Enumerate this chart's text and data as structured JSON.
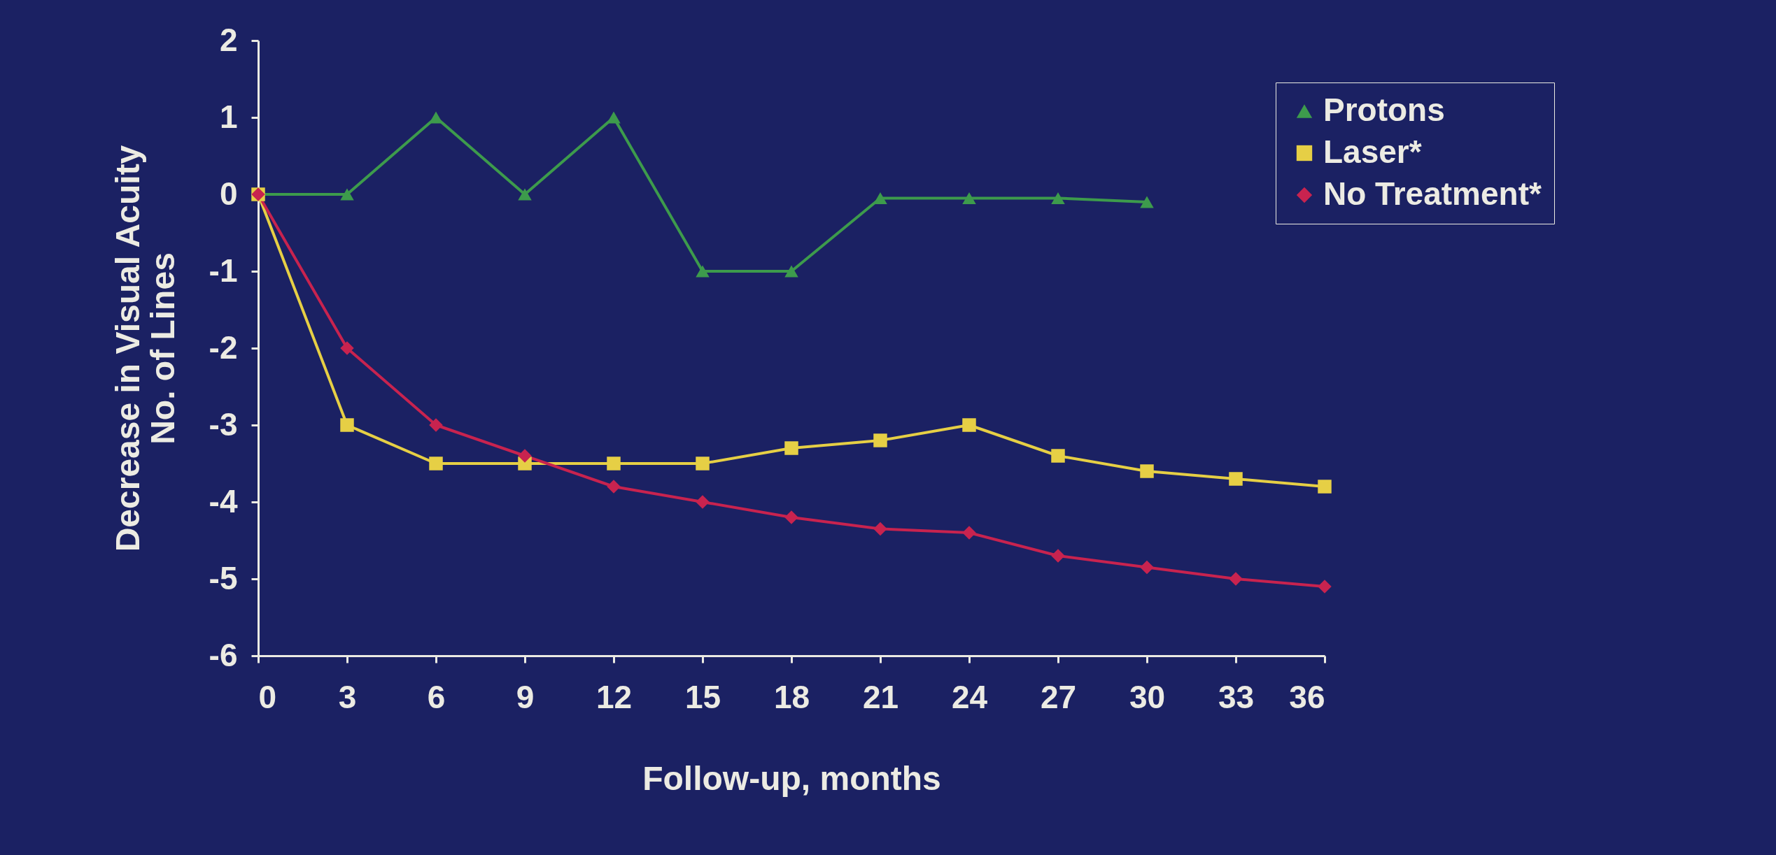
{
  "chart_data": {
    "type": "line",
    "xlabel": "Follow-up, months",
    "ylabel": "Decrease in Visual Acuity\nNo. of Lines",
    "x": [
      0,
      3,
      6,
      9,
      12,
      15,
      18,
      21,
      24,
      27,
      30,
      33,
      36
    ],
    "xlim": [
      0,
      36
    ],
    "xticks": [
      0,
      3,
      6,
      9,
      12,
      15,
      18,
      21,
      24,
      27,
      30,
      33,
      36
    ],
    "ylim": [
      -6,
      2
    ],
    "yticks": [
      -6,
      -5,
      -4,
      -3,
      -2,
      -1,
      0,
      1,
      2
    ],
    "grid": false,
    "legend": "top right",
    "line_style": "solid",
    "series": [
      {
        "name": "Protons",
        "color": "#3d9b4c",
        "marker": "triangle",
        "values": [
          0,
          0,
          1,
          0,
          1,
          -1,
          -1,
          -0.05,
          -0.05,
          -0.05,
          -0.1,
          null,
          null
        ]
      },
      {
        "name": "Laser*",
        "color": "#e6cf45",
        "marker": "square",
        "values": [
          0,
          -3,
          -3.5,
          -3.5,
          -3.5,
          -3.5,
          -3.3,
          -3.2,
          -3.0,
          -3.4,
          -3.6,
          -3.7,
          -3.8
        ]
      },
      {
        "name": "No Treatment*",
        "color": "#c8234f",
        "marker": "diamond",
        "values": [
          0,
          -2,
          -3,
          -3.4,
          -3.8,
          -4.0,
          -4.2,
          -4.35,
          -4.4,
          -4.7,
          -4.85,
          -5.0,
          -5.1
        ]
      }
    ]
  }
}
